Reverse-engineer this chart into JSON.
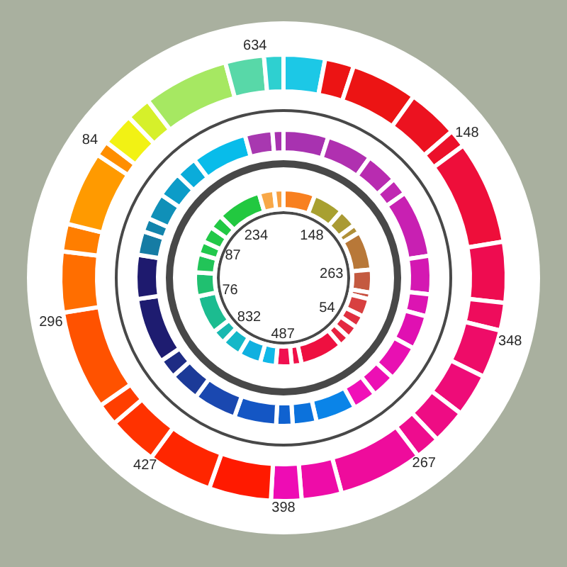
{
  "chart_data": {
    "type": "donut",
    "series": [
      {
        "values": [
          3.0,
          2.1,
          4.8,
          3.7,
          1.3,
          7.5,
          4.4,
          2.0,
          3.5,
          3.1,
          2.5,
          1.8,
          6.1,
          2.9,
          2.2,
          4.5,
          4.7,
          3.6,
          1.6,
          7.2,
          4.4,
          2.0,
          5.4,
          1.1,
          2.4,
          1.8,
          6.2,
          2.8,
          1.4
        ],
        "colors": [
          "#1cc8e6",
          "#ec1414",
          "#ec1414",
          "#ec1220",
          "#ec102a",
          "#ee0e3a",
          "#ee0c50",
          "#ee0c5c",
          "#ee0c68",
          "#ee0c78",
          "#ee0c84",
          "#ee0c8e",
          "#ee0c9c",
          "#ee0ca8",
          "#ee0cb4",
          "#ff1a00",
          "#ff2600",
          "#ff3200",
          "#ff3e00",
          "#ff5200",
          "#ff6e00",
          "#ff7e00",
          "#ff9a00",
          "#ff8e00",
          "#f2f214",
          "#d6f02a",
          "#a6e862",
          "#58d8a8",
          "#2ed0d0"
        ]
      },
      {
        "values": [
          4.9,
          5.0,
          3.5,
          1.9,
          7.3,
          4.2,
          2.4,
          3.7,
          3.9,
          2.6,
          2.6,
          4.4,
          2.6,
          1.8,
          4.6,
          4.7,
          3.3,
          2.1,
          7.2,
          4.8,
          2.6,
          1.5,
          2.9,
          2.8,
          2.4,
          6.1,
          3.0,
          1.2
        ],
        "colors": [
          "#a832b0",
          "#b030b0",
          "#b82cb0",
          "#c028b2",
          "#c820b2",
          "#d418b2",
          "#dc14b2",
          "#e010b2",
          "#e810b2",
          "#ec10b4",
          "#f010b8",
          "#0a84e8",
          "#0c72dc",
          "#1062d0",
          "#1456c4",
          "#1a48b0",
          "#1c3a98",
          "#1e2c84",
          "#1e1c70",
          "#1e1a6e",
          "#167ca4",
          "#1284ac",
          "#1090b8",
          "#0c9cc8",
          "#0aacda",
          "#08bcea",
          "#a838b0",
          "#a832b0"
        ]
      },
      {
        "values": [
          5.8,
          5.6,
          3.4,
          1.6,
          7.1,
          4.2,
          1.2,
          3.3,
          2.3,
          2.3,
          2.0,
          7.9,
          1.8,
          2.9,
          2.9,
          4.1,
          3.6,
          2.5,
          7.1,
          4.4,
          3.4,
          2.4,
          2.9,
          2.6,
          8.2,
          2.8,
          1.7
        ],
        "colors": [
          "#f88020",
          "#a8a030",
          "#aa9a34",
          "#b09038",
          "#b87838",
          "#c45a40",
          "#c85040",
          "#d84040",
          "#e03040",
          "#e42840",
          "#e82040",
          "#ee1040",
          "#f01048",
          "#f01050",
          "#10b8e8",
          "#10b0e0",
          "#14b8c8",
          "#18b8b0",
          "#1cbc90",
          "#20c070",
          "#22c458",
          "#22c84c",
          "#22c848",
          "#22c844",
          "#22c840",
          "#f8a848",
          "#f8a040"
        ]
      }
    ],
    "annotations": [
      "634",
      "148",
      "348",
      "267",
      "398",
      "427",
      "296",
      "84",
      "234",
      "148",
      "263",
      "54",
      "487",
      "832",
      "76",
      "87"
    ]
  }
}
